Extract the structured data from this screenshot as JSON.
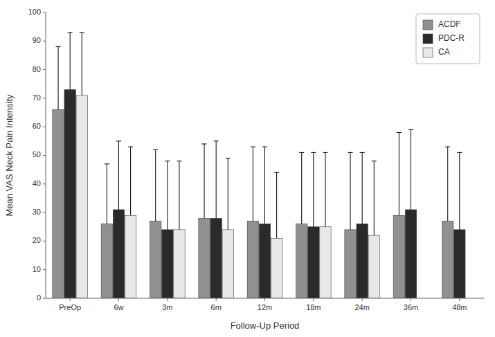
{
  "chart_data": {
    "type": "bar",
    "xlabel": "Follow-Up Period",
    "ylabel": "Mean VAS Neck Pain Intensity",
    "categories": [
      "PreOp",
      "6w",
      "3m",
      "6m",
      "12m",
      "18m",
      "24m",
      "36m",
      "48m"
    ],
    "series": [
      {
        "name": "ACDF",
        "color": "#909090",
        "values": [
          66,
          26,
          27,
          28,
          27,
          26,
          24,
          29,
          27
        ],
        "errors": [
          22,
          21,
          25,
          26,
          26,
          25,
          27,
          29,
          26
        ]
      },
      {
        "name": "PDC-R",
        "color": "#2a2a2a",
        "values": [
          73,
          31,
          24,
          28,
          26,
          25,
          26,
          31,
          24
        ],
        "errors": [
          20,
          24,
          24,
          27,
          27,
          26,
          25,
          28,
          27
        ]
      },
      {
        "name": "CA",
        "color": "#e8e8e8",
        "values": [
          71,
          29,
          24,
          24,
          21,
          25,
          22,
          null,
          null
        ],
        "errors": [
          22,
          24,
          24,
          25,
          23,
          26,
          26,
          null,
          null
        ]
      }
    ],
    "ylim": [
      0,
      100
    ],
    "yticks": [
      0,
      10,
      20,
      30,
      40,
      50,
      60,
      70,
      80,
      90,
      100
    ],
    "grid": false,
    "legend": "upper right"
  }
}
